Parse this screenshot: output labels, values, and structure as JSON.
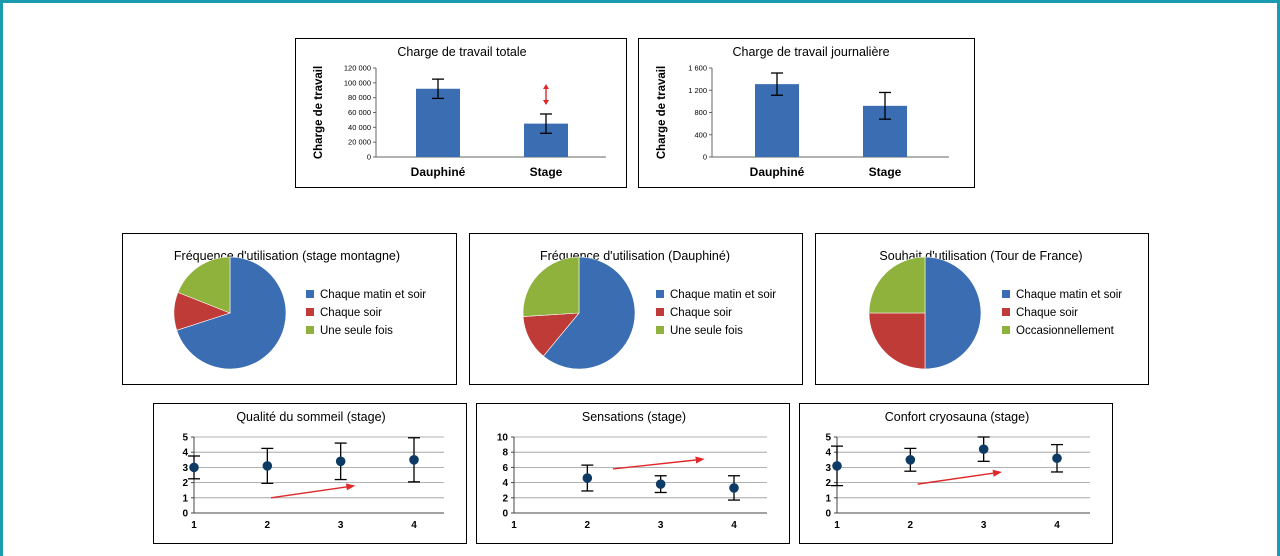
{
  "colors": {
    "frame": "#1a9bb0",
    "bar": "#3b6db3",
    "pie": [
      "#3b6db3",
      "#bf3b38",
      "#8fb23c"
    ],
    "point": "#0d3b66",
    "arrow": "#e0282a",
    "grid": "#999999"
  },
  "chart_data": [
    {
      "id": "bar1",
      "type": "bar",
      "title": "Charge de travail totale",
      "ylabel": "Charge de travail",
      "categories": [
        "Dauphiné",
        "Stage"
      ],
      "values": [
        92000,
        45000
      ],
      "errors": [
        13000,
        13000
      ],
      "ylim": [
        0,
        120000
      ],
      "yticks": [
        0,
        20000,
        40000,
        60000,
        80000,
        100000,
        120000
      ],
      "ytick_labels": [
        "0",
        "20 000",
        "40 000",
        "60 000",
        "80 000",
        "100 000",
        "120 000"
      ],
      "annotation": "double-arrow",
      "grid": false
    },
    {
      "id": "bar2",
      "type": "bar",
      "title": "Charge de travail journalière",
      "ylabel": "Charge de travail",
      "categories": [
        "Dauphiné",
        "Stage"
      ],
      "values": [
        1310,
        920
      ],
      "errors": [
        200,
        240
      ],
      "ylim": [
        0,
        1600
      ],
      "yticks": [
        0,
        400,
        800,
        1200,
        1600
      ],
      "ytick_labels": [
        "0",
        "400",
        "800",
        "1 200",
        "1 600"
      ],
      "grid": false
    },
    {
      "id": "pie1",
      "type": "pie",
      "title": "Fréquence d'utilisation (stage montagne)",
      "labels": [
        "Chaque matin et soir",
        "Chaque soir",
        "Une seule fois"
      ],
      "values": [
        70,
        11,
        19
      ],
      "legend": "right"
    },
    {
      "id": "pie2",
      "type": "pie",
      "title": "Fréquence d'utilisation (Dauphiné)",
      "labels": [
        "Chaque matin et soir",
        "Chaque soir",
        "Une seule fois"
      ],
      "values": [
        61,
        13,
        26
      ],
      "legend": "right"
    },
    {
      "id": "pie3",
      "type": "pie",
      "title": "Souhait d'utilisation (Tour de France)",
      "labels": [
        "Chaque matin et soir",
        "Chaque soir",
        "Occasionnellement"
      ],
      "values": [
        50,
        25,
        25
      ],
      "legend": "right"
    },
    {
      "id": "sc1",
      "type": "scatter",
      "title": "Qualité du sommeil (stage)",
      "x": [
        1,
        2,
        3,
        4
      ],
      "y": [
        3.0,
        3.1,
        3.4,
        3.5
      ],
      "errors": [
        0.75,
        1.15,
        1.2,
        1.45
      ],
      "xlim": [
        1,
        4
      ],
      "ylim": [
        0,
        5
      ],
      "yticks": [
        0,
        1,
        2,
        3,
        4,
        5
      ],
      "ytick_labels": [
        "0",
        "1",
        "2",
        "3",
        "4",
        "5"
      ],
      "xtick_labels": [
        "1",
        "2",
        "3",
        "4"
      ],
      "trend_arrow": [
        [
          2.05,
          1.0
        ],
        [
          3.2,
          1.8
        ]
      ],
      "grid": true
    },
    {
      "id": "sc2",
      "type": "scatter",
      "title": "Sensations (stage)",
      "x": [
        2,
        3,
        4
      ],
      "y": [
        4.6,
        3.8,
        3.3
      ],
      "errors": [
        1.7,
        1.1,
        1.6
      ],
      "xlim": [
        1,
        4
      ],
      "ylim": [
        0,
        10
      ],
      "yticks": [
        0,
        2,
        4,
        6,
        8,
        10
      ],
      "ytick_labels": [
        "0",
        "2",
        "4",
        "6",
        "8",
        "10"
      ],
      "xtick_labels": [
        "1",
        "2",
        "3",
        "4"
      ],
      "trend_arrow": [
        [
          2.35,
          5.8
        ],
        [
          3.6,
          7.1
        ]
      ],
      "grid": true
    },
    {
      "id": "sc3",
      "type": "scatter",
      "title": "Confort cryosauna (stage)",
      "x": [
        1,
        2,
        3,
        4
      ],
      "y": [
        3.1,
        3.5,
        4.2,
        3.6
      ],
      "errors": [
        1.3,
        0.75,
        0.8,
        0.9
      ],
      "xlim": [
        1,
        4
      ],
      "ylim": [
        0,
        5
      ],
      "yticks": [
        0,
        1,
        2,
        3,
        4,
        5
      ],
      "ytick_labels": [
        "0",
        "1",
        "2",
        "3",
        "4",
        "5"
      ],
      "xtick_labels": [
        "1",
        "2",
        "3",
        "4"
      ],
      "trend_arrow": [
        [
          2.1,
          1.9
        ],
        [
          3.25,
          2.7
        ]
      ],
      "grid": true
    }
  ]
}
